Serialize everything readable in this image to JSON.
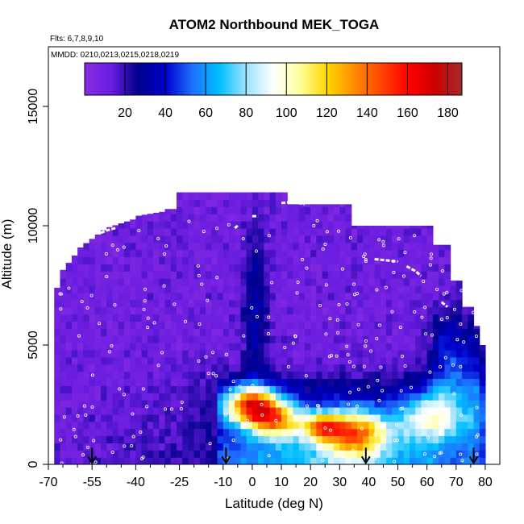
{
  "chart_data": {
    "type": "heatmap",
    "title": "ATOM2 Northbound MEK_TOGA",
    "flights_label": "Flts: 6,7,8,9,10",
    "dates_label": "MMDD: 0210,0213,0215,0218,0219",
    "xlabel": "Latitude (deg N)",
    "ylabel": "Altitude (m)",
    "xlim": [
      -70,
      85
    ],
    "ylim": [
      0,
      17500
    ],
    "xticks": [
      -70,
      -55,
      -40,
      -25,
      -10,
      0,
      10,
      20,
      30,
      40,
      50,
      60,
      70,
      80
    ],
    "xtick_labels": [
      "-70",
      "-55",
      "-40",
      "-25",
      "-10",
      "0",
      "10",
      "20",
      "30",
      "40",
      "50",
      "60",
      "70",
      "80"
    ],
    "xticks_minor": [
      -65,
      -60,
      -50,
      -45,
      -35,
      -30,
      -20,
      -15,
      -5,
      5,
      15,
      25,
      35,
      45,
      55,
      65,
      75
    ],
    "yticks": [
      0,
      5000,
      10000,
      15000
    ],
    "ytick_labels": [
      "0",
      "5000",
      "10000",
      "15000"
    ],
    "colorbar": {
      "range": [
        0,
        187
      ],
      "ticks": [
        20,
        40,
        60,
        80,
        100,
        120,
        140,
        160,
        180
      ],
      "tick_labels": [
        "20",
        "40",
        "60",
        "80",
        "100",
        "120",
        "140",
        "160",
        "180"
      ],
      "colors": [
        "#8a2be2",
        "#6a1de0",
        "#00008b",
        "#0000cd",
        "#1e6fff",
        "#00bfff",
        "#9fe3ff",
        "#ffffff",
        "#ffff9a",
        "#ffd700",
        "#ff8c00",
        "#ff4500",
        "#ff0000",
        "#cd0000",
        "#a52a2a"
      ]
    },
    "arrows_latitude": [
      -55,
      -9,
      39,
      76
    ],
    "flight_paths": [
      {
        "points": [
          [
            -52,
            9700
          ],
          [
            -50,
            9800
          ],
          [
            -47,
            9900
          ]
        ]
      },
      {
        "points": [
          [
            -42,
            10500
          ],
          [
            -38,
            10600
          ],
          [
            -33,
            10750
          ]
        ]
      },
      {
        "points": [
          [
            -6,
            9900
          ],
          [
            -5,
            10000
          ]
        ]
      },
      {
        "points": [
          [
            0,
            10400
          ],
          [
            2,
            10400
          ]
        ]
      },
      {
        "points": [
          [
            10,
            10950
          ],
          [
            14,
            11000
          ],
          [
            18,
            10900
          ]
        ]
      },
      {
        "points": [
          [
            42,
            8600
          ],
          [
            46,
            8550
          ],
          [
            50,
            8500
          ]
        ]
      },
      {
        "points": [
          [
            53,
            8300
          ],
          [
            56,
            8100
          ],
          [
            58,
            7900
          ]
        ]
      },
      {
        "points": [
          [
            65,
            6800
          ],
          [
            67,
            6600
          ]
        ]
      }
    ]
  }
}
